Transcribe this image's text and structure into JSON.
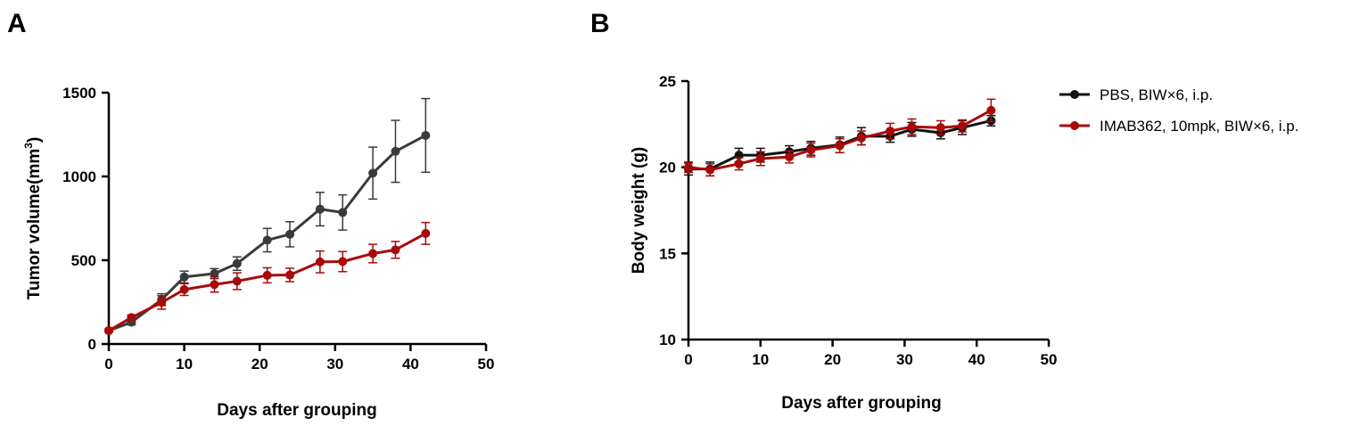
{
  "panels": [
    {
      "label": "A"
    },
    {
      "label": "B"
    }
  ],
  "colors": {
    "series_dark": "#3a3a3a",
    "series_red": "#a80a0a",
    "series_black": "#111111",
    "axis": "#000000"
  },
  "legend": {
    "placement": "right",
    "entries": [
      "PBS, BIW×6, i.p.",
      "IMAB362, 10mpk, BIW×6, i.p."
    ]
  },
  "chart_data": [
    {
      "type": "line",
      "panel": "A",
      "xlabel": "Days after grouping",
      "ylabel_main": "Tumor volume(mm",
      "ylabel_sup": "3",
      "ylabel_end": ")",
      "xlim": [
        0,
        50
      ],
      "ylim": [
        0,
        1500
      ],
      "xticks": [
        0,
        10,
        20,
        30,
        40,
        50
      ],
      "yticks": [
        0,
        500,
        1000,
        1500
      ],
      "grid": false,
      "series": [
        {
          "color_key": "series_dark",
          "x": [
            0,
            3,
            7,
            10,
            14,
            17,
            21,
            24,
            28,
            31,
            35,
            38,
            42
          ],
          "y": [
            80,
            130,
            265,
            400,
            420,
            480,
            620,
            655,
            805,
            785,
            1020,
            1150,
            1245
          ],
          "err": [
            8,
            15,
            35,
            35,
            30,
            40,
            70,
            75,
            100,
            105,
            155,
            185,
            220
          ]
        },
        {
          "color_key": "series_red",
          "x": [
            0,
            3,
            7,
            10,
            14,
            17,
            21,
            24,
            28,
            31,
            35,
            38,
            42
          ],
          "y": [
            80,
            158,
            248,
            325,
            355,
            375,
            410,
            412,
            490,
            492,
            540,
            562,
            660
          ],
          "err": [
            8,
            15,
            40,
            35,
            45,
            50,
            45,
            40,
            65,
            60,
            55,
            50,
            65
          ]
        }
      ]
    },
    {
      "type": "line",
      "panel": "B",
      "xlabel": "Days after grouping",
      "ylabel": "Body weight (g)",
      "xlim": [
        0,
        50
      ],
      "ylim": [
        10,
        25
      ],
      "xticks": [
        0,
        10,
        20,
        30,
        40,
        50
      ],
      "yticks": [
        10,
        15,
        20,
        25
      ],
      "grid": false,
      "series": [
        {
          "name": "PBS, BIW×6, i.p.",
          "color_key": "series_black",
          "x": [
            0,
            3,
            7,
            10,
            14,
            17,
            21,
            24,
            28,
            31,
            35,
            38,
            42
          ],
          "y": [
            19.9,
            19.9,
            20.7,
            20.7,
            20.9,
            21.1,
            21.3,
            21.8,
            21.8,
            22.2,
            22.0,
            22.3,
            22.7
          ],
          "err": [
            0.35,
            0.4,
            0.4,
            0.4,
            0.35,
            0.4,
            0.45,
            0.5,
            0.35,
            0.4,
            0.35,
            0.4,
            0.3
          ]
        },
        {
          "name": "IMAB362, 10mpk, BIW×6, i.p.",
          "color_key": "series_red",
          "x": [
            0,
            3,
            7,
            10,
            14,
            17,
            21,
            24,
            28,
            31,
            35,
            38,
            42
          ],
          "y": [
            20.0,
            19.85,
            20.2,
            20.5,
            20.6,
            21.0,
            21.25,
            21.7,
            22.1,
            22.35,
            22.3,
            22.4,
            23.3
          ],
          "err": [
            0.3,
            0.35,
            0.35,
            0.4,
            0.35,
            0.4,
            0.4,
            0.4,
            0.45,
            0.45,
            0.4,
            0.35,
            0.65
          ]
        }
      ]
    }
  ]
}
